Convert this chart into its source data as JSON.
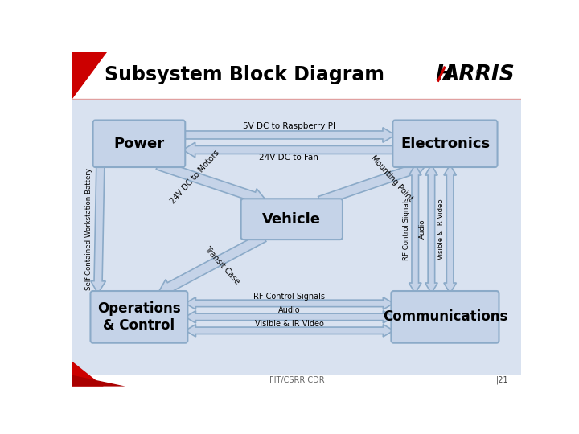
{
  "title": "Subsystem Block Diagram",
  "bg_color": "#ffffff",
  "slide_bg": "#d9e2f0",
  "box_fill": "#c5d3e8",
  "box_edge": "#8baac8",
  "arrow_fill": "#c5d3e8",
  "arrow_edge": "#8baac8",
  "footer_text": "FIT/CSRR CDR",
  "page_num": "|21",
  "red_color": "#cc0000"
}
